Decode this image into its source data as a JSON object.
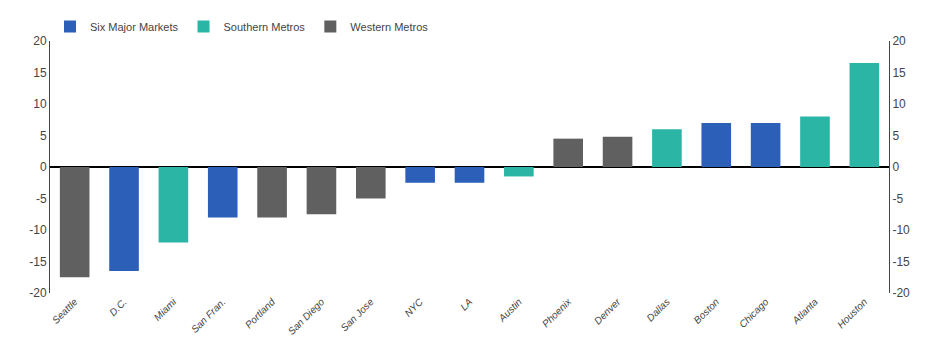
{
  "chart_data": {
    "type": "bar",
    "categories": [
      "Seattle",
      "D.C.",
      "Miami",
      "San Fran.",
      "Portland",
      "San Diego",
      "San Jose",
      "NYC",
      "LA",
      "Austin",
      "Phoenix",
      "Denver",
      "Dallas",
      "Boston",
      "Chicago",
      "Atlanta",
      "Houston"
    ],
    "series": [
      {
        "name": "Six Major Markets",
        "color": "#2b5fb8",
        "values": [
          null,
          -16.5,
          null,
          -8.0,
          null,
          null,
          null,
          -2.5,
          -2.5,
          null,
          null,
          null,
          null,
          7.0,
          7.0,
          null,
          null
        ]
      },
      {
        "name": "Southern Metros",
        "color": "#2ab5a5",
        "values": [
          null,
          null,
          -12.0,
          null,
          null,
          null,
          null,
          null,
          null,
          -1.5,
          null,
          null,
          6.0,
          null,
          null,
          8.0,
          16.5
        ]
      },
      {
        "name": "Western Metros",
        "color": "#606060",
        "values": [
          -17.5,
          null,
          null,
          null,
          -8.0,
          -7.5,
          -5.0,
          null,
          null,
          null,
          4.5,
          4.8,
          null,
          null,
          null,
          null,
          null
        ]
      }
    ],
    "ylim": [
      -20,
      20
    ],
    "yticks": [
      -20,
      -15,
      -10,
      -5,
      0,
      5,
      10,
      15,
      20
    ],
    "y2lim": [
      -20,
      20
    ],
    "y2ticks": [
      -20,
      -15,
      -10,
      -5,
      0,
      5,
      10,
      15,
      20
    ],
    "grid": false,
    "legend": "upper left"
  }
}
